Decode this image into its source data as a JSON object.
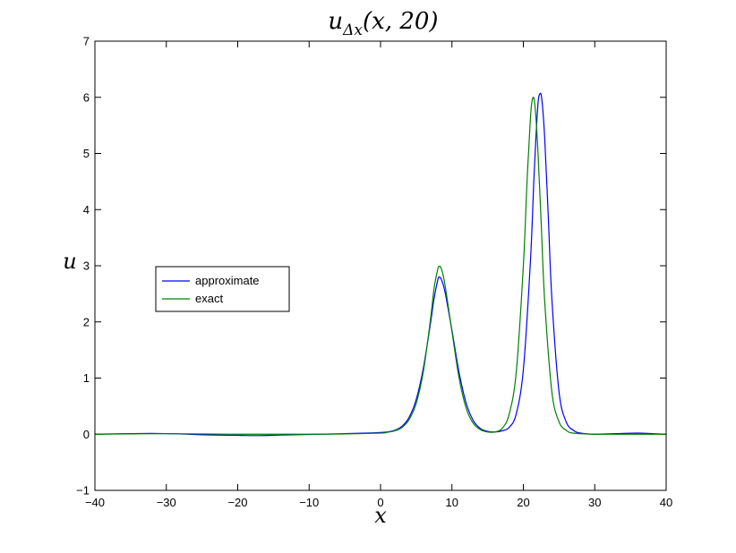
{
  "chart_data": {
    "type": "line",
    "title": "u_Δx(x, 20)",
    "title_parts": {
      "base": "u",
      "sub": "Δx",
      "args": "(x, 20)"
    },
    "xlabel": "x",
    "ylabel": "u",
    "xlim": [
      -40,
      40
    ],
    "ylim": [
      -1,
      7
    ],
    "x_ticks": [
      "−40",
      "−30",
      "−20",
      "−10",
      "0",
      "10",
      "20",
      "30",
      "40"
    ],
    "y_ticks": [
      "−1",
      "0",
      "1",
      "2",
      "3",
      "4",
      "5",
      "6",
      "7"
    ],
    "grid": false,
    "legend_position": "center-left",
    "series": [
      {
        "name": "approximate",
        "color": "#0000ff",
        "points": [
          [
            -40,
            0.0
          ],
          [
            -35,
            0.01
          ],
          [
            -32,
            0.015
          ],
          [
            -28,
            0.005
          ],
          [
            -25,
            -0.01
          ],
          [
            -20,
            -0.02
          ],
          [
            -17,
            -0.025
          ],
          [
            -14,
            -0.015
          ],
          [
            -10,
            -0.005
          ],
          [
            -5,
            0.01
          ],
          [
            -2,
            0.02
          ],
          [
            0,
            0.03
          ],
          [
            1,
            0.04
          ],
          [
            2,
            0.07
          ],
          [
            3,
            0.14
          ],
          [
            4,
            0.3
          ],
          [
            5,
            0.62
          ],
          [
            6,
            1.18
          ],
          [
            7,
            1.98
          ],
          [
            7.5,
            2.42
          ],
          [
            8,
            2.74
          ],
          [
            8.2,
            2.8
          ],
          [
            8.5,
            2.76
          ],
          [
            9,
            2.55
          ],
          [
            10,
            1.85
          ],
          [
            11,
            1.1
          ],
          [
            12,
            0.55
          ],
          [
            13,
            0.24
          ],
          [
            14,
            0.1
          ],
          [
            15,
            0.05
          ],
          [
            16,
            0.04
          ],
          [
            17,
            0.06
          ],
          [
            18,
            0.12
          ],
          [
            19,
            0.36
          ],
          [
            20,
            1.15
          ],
          [
            21,
            3.1
          ],
          [
            21.5,
            4.6
          ],
          [
            22,
            5.8
          ],
          [
            22.3,
            6.06
          ],
          [
            22.6,
            5.95
          ],
          [
            23,
            5.25
          ],
          [
            23.5,
            3.85
          ],
          [
            24,
            2.4
          ],
          [
            25,
            0.75
          ],
          [
            26,
            0.22
          ],
          [
            27,
            0.07
          ],
          [
            28,
            0.02
          ],
          [
            30,
            0.0
          ],
          [
            33,
            0.01
          ],
          [
            36,
            0.02
          ],
          [
            38,
            0.01
          ],
          [
            40,
            0.0
          ]
        ]
      },
      {
        "name": "exact",
        "color": "#008000",
        "points": [
          [
            -40,
            0.0
          ],
          [
            -35,
            0.005
          ],
          [
            -30,
            0.01
          ],
          [
            -25,
            0.005
          ],
          [
            -20,
            0.0
          ],
          [
            -15,
            0.0
          ],
          [
            -10,
            0.0
          ],
          [
            -5,
            0.005
          ],
          [
            0,
            0.02
          ],
          [
            1,
            0.035
          ],
          [
            2,
            0.06
          ],
          [
            3,
            0.12
          ],
          [
            4,
            0.26
          ],
          [
            5,
            0.55
          ],
          [
            6,
            1.12
          ],
          [
            7,
            2.05
          ],
          [
            7.5,
            2.6
          ],
          [
            8,
            2.93
          ],
          [
            8.2,
            2.99
          ],
          [
            8.5,
            2.95
          ],
          [
            9,
            2.68
          ],
          [
            10,
            1.83
          ],
          [
            11,
            1.0
          ],
          [
            12,
            0.46
          ],
          [
            13,
            0.19
          ],
          [
            14,
            0.08
          ],
          [
            15,
            0.04
          ],
          [
            16,
            0.04
          ],
          [
            17,
            0.1
          ],
          [
            18,
            0.35
          ],
          [
            19,
            1.1
          ],
          [
            20,
            3.0
          ],
          [
            20.5,
            4.45
          ],
          [
            21,
            5.65
          ],
          [
            21.3,
            5.98
          ],
          [
            21.6,
            5.88
          ],
          [
            22,
            5.15
          ],
          [
            22.5,
            3.75
          ],
          [
            23,
            2.35
          ],
          [
            24,
            0.75
          ],
          [
            25,
            0.22
          ],
          [
            26,
            0.07
          ],
          [
            27,
            0.02
          ],
          [
            30,
            0.0
          ],
          [
            35,
            0.0
          ],
          [
            40,
            0.0
          ]
        ]
      }
    ]
  }
}
